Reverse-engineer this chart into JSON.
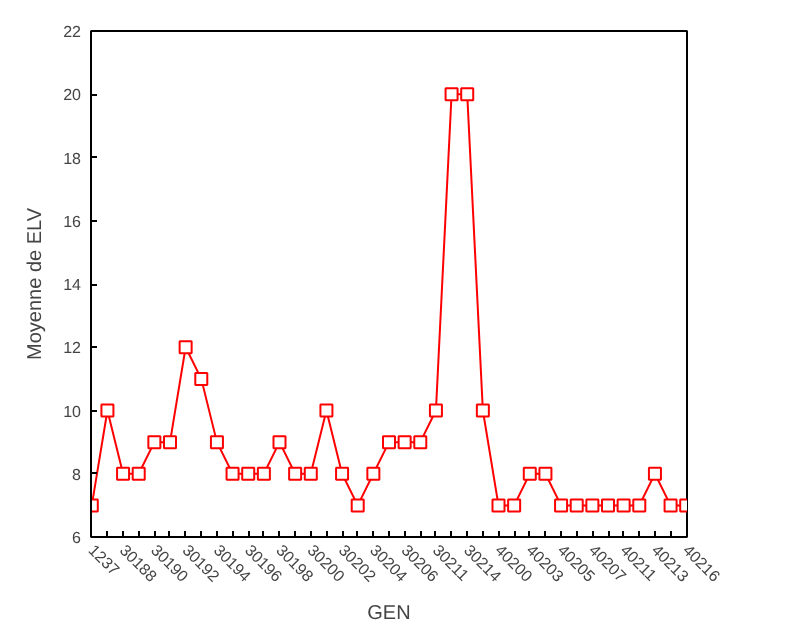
{
  "chart_data": {
    "type": "line",
    "xlabel": "GEN",
    "ylabel": "Moyenne de ELV",
    "categories": [
      "1237",
      null,
      "30188",
      null,
      "30190",
      null,
      "30192",
      null,
      "30194",
      null,
      "30196",
      null,
      "30198",
      null,
      "30200",
      null,
      "30202",
      null,
      "30204",
      null,
      "30206",
      null,
      "30211",
      null,
      "30214",
      null,
      "40200",
      null,
      "40203",
      null,
      "40205",
      null,
      "40207",
      null,
      "40211",
      null,
      "40213",
      null,
      "40216"
    ],
    "series": [
      {
        "color": "#ff0000",
        "values": [
          7,
          10,
          8,
          8,
          9,
          9,
          12,
          11,
          9,
          8,
          8,
          8,
          9,
          8,
          8,
          10,
          8,
          7,
          8,
          9,
          9,
          9,
          10,
          20,
          20,
          10,
          7,
          7,
          8,
          8,
          7,
          7,
          7,
          7,
          7,
          7,
          8,
          7,
          7
        ]
      }
    ],
    "ylim": [
      6,
      22
    ],
    "yticks": [
      6,
      8,
      10,
      12,
      14,
      16,
      18,
      20,
      22
    ],
    "grid": false,
    "marker": "square",
    "line_style": "solid"
  }
}
